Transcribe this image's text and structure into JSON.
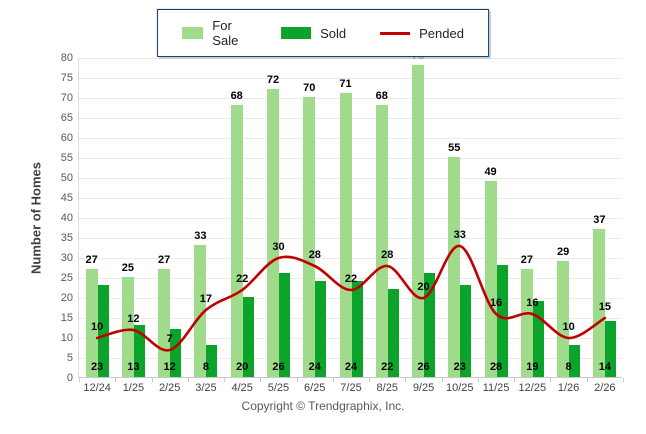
{
  "footer": {
    "copyright": "Copyright © Trendgraphix, Inc."
  },
  "colors": {
    "for_sale": "#A0DB8C",
    "sold": "#0CA32B",
    "pended": "#C00000",
    "grid": "#EBEBEB",
    "axis": "#C9C9C9",
    "tick_label": "#595959",
    "data_label": "#000000",
    "legend_border": "#1C3B6E"
  },
  "chart_data": {
    "type": "bar",
    "title": "",
    "xlabel": "",
    "ylabel": "Number of Homes",
    "ylim": [
      0,
      80
    ],
    "ytick_step": 5,
    "grid": true,
    "legend_position": "top",
    "categories": [
      "12/24",
      "1/25",
      "2/25",
      "3/25",
      "4/25",
      "5/25",
      "6/25",
      "7/25",
      "8/25",
      "9/25",
      "10/25",
      "11/25",
      "12/25",
      "1/26",
      "2/26"
    ],
    "series": [
      {
        "name": "For Sale",
        "type": "bar",
        "color": "#A0DB8C",
        "values": [
          27,
          25,
          27,
          33,
          68,
          72,
          70,
          71,
          68,
          78,
          55,
          49,
          27,
          29,
          37
        ]
      },
      {
        "name": "Sold",
        "type": "bar",
        "color": "#0CA32B",
        "values": [
          23,
          13,
          12,
          8,
          20,
          26,
          24,
          24,
          22,
          26,
          23,
          28,
          19,
          8,
          14
        ]
      },
      {
        "name": "Pended",
        "type": "line",
        "color": "#C00000",
        "values": [
          10,
          12,
          7,
          17,
          22,
          30,
          28,
          22,
          28,
          20,
          33,
          16,
          16,
          10,
          15
        ]
      }
    ]
  }
}
